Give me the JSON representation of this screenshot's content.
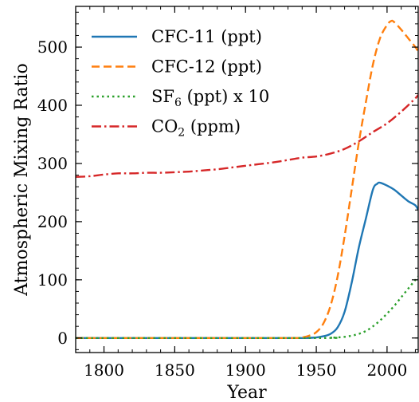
{
  "chart_data": {
    "type": "line",
    "title": "",
    "xlabel": "Year",
    "ylabel": "Atmospheric Mixing Ratio",
    "xlim": [
      1780,
      2022
    ],
    "ylim": [
      -25,
      570
    ],
    "xticks": [
      1800,
      1850,
      1900,
      1950,
      2000
    ],
    "yticks": [
      0,
      100,
      200,
      300,
      400,
      500
    ],
    "grid": false,
    "legend_position": "top-left",
    "series": [
      {
        "name_prefix": "CFC-11",
        "name_sub": "",
        "name_suffix": " (ppt)",
        "color": "#1f77b4",
        "linestyle": "solid",
        "x": [
          1780,
          1900,
          1940,
          1950,
          1955,
          1960,
          1965,
          1970,
          1975,
          1980,
          1985,
          1990,
          1993,
          1995,
          2000,
          2005,
          2010,
          2015,
          2020,
          2022
        ],
        "y": [
          0,
          0,
          0,
          1,
          3,
          7,
          18,
          45,
          95,
          155,
          205,
          255,
          265,
          267,
          262,
          255,
          245,
          235,
          228,
          220
        ]
      },
      {
        "name_prefix": "CFC-12",
        "name_sub": "",
        "name_suffix": " (ppt)",
        "color": "#ff7f0e",
        "linestyle": "dashed",
        "x": [
          1780,
          1900,
          1935,
          1940,
          1945,
          1950,
          1955,
          1960,
          1965,
          1970,
          1975,
          1980,
          1985,
          1990,
          1995,
          2000,
          2003,
          2005,
          2010,
          2015,
          2020,
          2022
        ],
        "y": [
          0,
          0,
          0,
          1,
          4,
          10,
          25,
          55,
          105,
          175,
          255,
          335,
          405,
          470,
          515,
          538,
          545,
          543,
          530,
          515,
          500,
          492
        ]
      },
      {
        "name_prefix": "SF",
        "name_sub": "6",
        "name_suffix": " (ppt) x 10",
        "color": "#2ca02c",
        "linestyle": "dotted",
        "x": [
          1780,
          1950,
          1960,
          1965,
          1970,
          1975,
          1980,
          1985,
          1990,
          1995,
          2000,
          2005,
          2010,
          2015,
          2020,
          2022
        ],
        "y": [
          0,
          0,
          0.5,
          1,
          2,
          4,
          7,
          12,
          20,
          30,
          42,
          55,
          70,
          85,
          100,
          106
        ]
      },
      {
        "name_prefix": "CO",
        "name_sub": "2",
        "name_suffix": " (ppm)",
        "color": "#d62728",
        "linestyle": "dashdot",
        "x": [
          1780,
          1790,
          1800,
          1810,
          1820,
          1830,
          1840,
          1850,
          1860,
          1870,
          1880,
          1890,
          1900,
          1910,
          1920,
          1930,
          1940,
          1950,
          1960,
          1970,
          1980,
          1990,
          2000,
          2010,
          2020,
          2022
        ],
        "y": [
          277,
          278,
          281,
          283,
          283,
          284,
          284,
          285,
          286,
          288,
          290,
          293,
          296,
          299,
          302,
          306,
          310,
          312,
          317,
          325,
          338,
          354,
          369,
          389,
          412,
          418
        ]
      }
    ]
  }
}
